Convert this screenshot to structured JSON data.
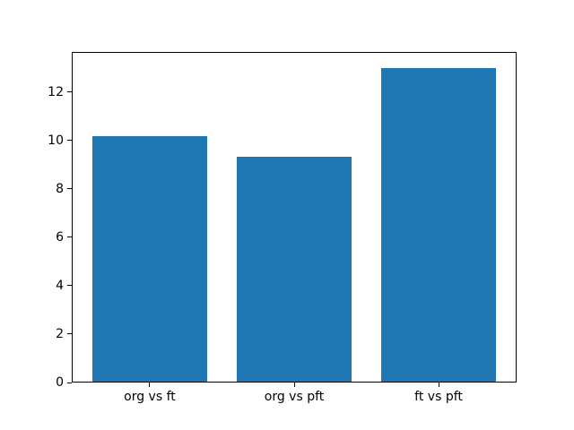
{
  "chart_data": {
    "type": "bar",
    "title": "",
    "xlabel": "",
    "ylabel": "",
    "categories": [
      "org vs ft",
      "org vs pft",
      "ft vs pft"
    ],
    "values": [
      10.2,
      9.35,
      13.0
    ],
    "yticks": [
      0,
      2,
      4,
      6,
      8,
      10,
      12
    ],
    "ylim": [
      0,
      13.65
    ],
    "xlim": [
      -0.54,
      2.54
    ],
    "bar_positions": [
      0,
      1,
      2
    ],
    "bar_width": 0.8,
    "bar_color": "#1f77b4",
    "spine_color": "#000000",
    "background_color": "#ffffff",
    "grid": false,
    "legend": false
  }
}
